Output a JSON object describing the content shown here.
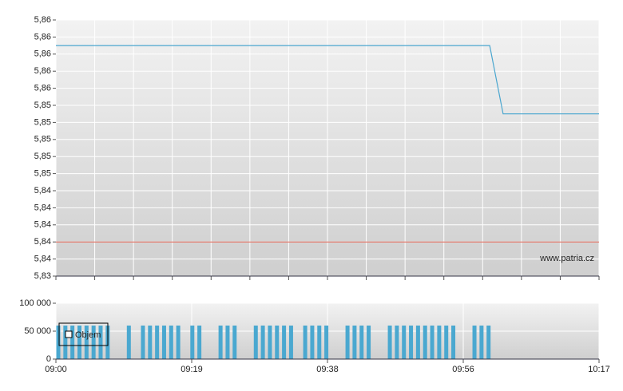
{
  "chart_data": [
    {
      "type": "line",
      "x": [
        0,
        61.5,
        63.4,
        77
      ],
      "series": [
        {
          "color": "#4aa6cf",
          "values": [
            5.861,
            5.861,
            5.853,
            5.853
          ]
        }
      ],
      "reference_line": {
        "value": 5.838,
        "color": "#e06050"
      },
      "xlim": [
        0,
        77
      ],
      "ylim": [
        5.834,
        5.864
      ],
      "yticks": [
        {
          "value": 5.834,
          "label": "5,83"
        },
        {
          "value": 5.836,
          "label": "5,84"
        },
        {
          "value": 5.838,
          "label": "5,84"
        },
        {
          "value": 5.84,
          "label": "5,84"
        },
        {
          "value": 5.842,
          "label": "5,84"
        },
        {
          "value": 5.844,
          "label": "5,84"
        },
        {
          "value": 5.846,
          "label": "5,85"
        },
        {
          "value": 5.848,
          "label": "5,85"
        },
        {
          "value": 5.85,
          "label": "5,85"
        },
        {
          "value": 5.852,
          "label": "5,85"
        },
        {
          "value": 5.854,
          "label": "5,85"
        },
        {
          "value": 5.856,
          "label": "5,86"
        },
        {
          "value": 5.858,
          "label": "5,86"
        },
        {
          "value": 5.86,
          "label": "5,86"
        },
        {
          "value": 5.862,
          "label": "5,86"
        },
        {
          "value": 5.864,
          "label": "5,86"
        }
      ],
      "grid": true,
      "watermark": "www.patria.cz"
    },
    {
      "type": "bar",
      "series": [
        {
          "name": "Objem",
          "color": "#4aa8d0",
          "x": [
            0,
            1,
            2,
            3,
            4,
            5,
            6,
            7,
            10,
            12,
            13,
            14,
            15,
            16,
            17,
            19,
            20,
            23,
            24,
            25,
            28,
            29,
            30,
            31,
            32,
            33,
            35,
            36,
            37,
            38,
            41,
            42,
            43,
            44,
            47,
            48,
            49,
            50,
            51,
            52,
            53,
            54,
            55,
            56,
            59,
            60,
            61
          ],
          "values": [
            60000,
            60000,
            60000,
            60000,
            60000,
            60000,
            60000,
            60000,
            60000,
            60000,
            60000,
            60000,
            60000,
            60000,
            60000,
            60000,
            60000,
            60000,
            60000,
            60000,
            60000,
            60000,
            60000,
            60000,
            60000,
            60000,
            60000,
            60000,
            60000,
            60000,
            60000,
            60000,
            60000,
            60000,
            60000,
            60000,
            60000,
            60000,
            60000,
            60000,
            60000,
            60000,
            60000,
            60000,
            60000,
            60000,
            60000
          ]
        }
      ],
      "xlim": [
        0,
        77
      ],
      "xticks": [
        {
          "value": 0,
          "label": "09:00"
        },
        {
          "value": 19.25,
          "label": "09:19"
        },
        {
          "value": 38.5,
          "label": "09:38"
        },
        {
          "value": 57.75,
          "label": "09:56"
        },
        {
          "value": 77,
          "label": "10:17"
        }
      ],
      "ylim": [
        0,
        100000
      ],
      "yticks": [
        0,
        {
          "value": 50000,
          "label": "50 000"
        },
        {
          "value": 100000,
          "label": "100 000"
        }
      ],
      "grid": true,
      "legend": "upper-left"
    }
  ]
}
